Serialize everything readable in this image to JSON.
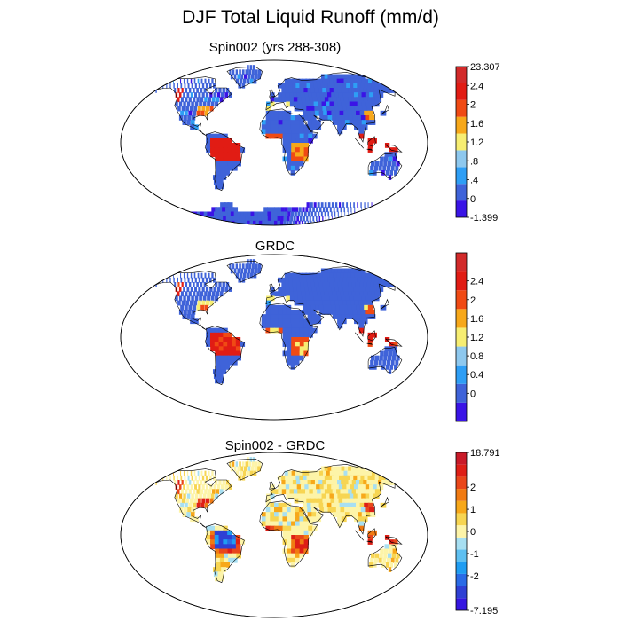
{
  "title": "DJF Total Liquid Runoff (mm/d)",
  "colors": {
    "runoff": [
      "#3a14e6",
      "#3f63d9",
      "#2e9ef5",
      "#8ec8ee",
      "#f7ee72",
      "#f7a81a",
      "#f04a14",
      "#e11c14",
      "#d22a2a"
    ],
    "diff": [
      "#3516e0",
      "#2f40d4",
      "#2a6be6",
      "#1f9df2",
      "#5fc0f1",
      "#a7dff2",
      "#fdf4a8",
      "#f7d552",
      "#f7a81a",
      "#f07a12",
      "#e9471a",
      "#de1f16",
      "#c91a28"
    ]
  },
  "chart_data": [
    {
      "type": "heatmap",
      "title": "Spin002 (yrs 288-308)",
      "colorbar_labels": [
        "23.307",
        "2.4",
        "2",
        "1.6",
        "1.2",
        ".8",
        ".4",
        "0",
        "-1.399"
      ],
      "colorbar_max": 23.307,
      "colorbar_min": -1.399
    },
    {
      "type": "heatmap",
      "title": "GRDC",
      "colorbar_labels": [
        "",
        "2.4",
        "2",
        "1.6",
        "1.2",
        "0.8",
        "0.4",
        "0",
        ""
      ]
    },
    {
      "type": "heatmap",
      "title": "Spin002 - GRDC",
      "colorbar_labels": [
        "18.791",
        "2",
        "1",
        "0",
        "-1",
        "-2",
        "-7.195"
      ],
      "colorbar_max": 18.791,
      "colorbar_min": -7.195
    }
  ]
}
